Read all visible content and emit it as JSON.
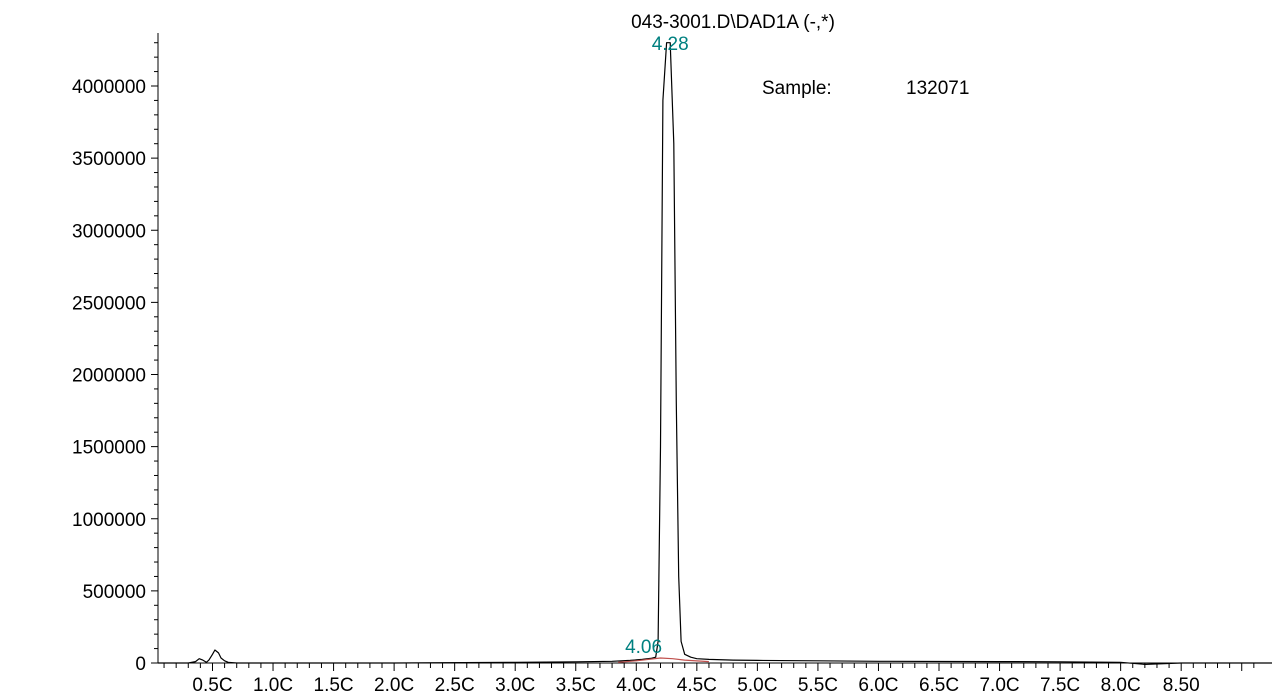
{
  "chart_data": {
    "type": "line",
    "title": "043-3001.D\\DAD1A (-,*)",
    "annotation": {
      "label": "Sample:",
      "value": "132071"
    },
    "xlabel": "",
    "ylabel": "",
    "xlim": [
      0.05,
      9.25
    ],
    "ylim": [
      0,
      4400000
    ],
    "grid": false,
    "x_tick_values": [
      0.5,
      1.0,
      1.5,
      2.0,
      2.5,
      3.0,
      3.5,
      4.0,
      4.5,
      5.0,
      5.5,
      6.0,
      6.5,
      7.0,
      7.5,
      8.0,
      8.5
    ],
    "x_tick_labels": [
      "0.5C",
      "1.0C",
      "1.5C",
      "2.0C",
      "2.5C",
      "3.0C",
      "3.5C",
      "4.0C",
      "4.5C",
      "5.0C",
      "5.5C",
      "6.0C",
      "6.5C",
      "7.0C",
      "7.5C",
      "8.0C",
      "8.50"
    ],
    "y_ticks": [
      {
        "value": 0,
        "label": "0"
      },
      {
        "value": 500000,
        "label": "500000"
      },
      {
        "value": 1000000,
        "label": "1000000"
      },
      {
        "value": 1500000,
        "label": "1500000"
      },
      {
        "value": 2000000,
        "label": "2000000"
      },
      {
        "value": 2500000,
        "label": "2500000"
      },
      {
        "value": 3000000,
        "label": "3000000"
      },
      {
        "value": 3500000,
        "label": "3500000"
      },
      {
        "value": 4000000,
        "label": "4000000"
      }
    ],
    "peaks": [
      {
        "label": "4.28",
        "x": 4.28,
        "y": 4400000,
        "color": "#008080"
      },
      {
        "label": "4.06",
        "x": 4.06,
        "y": 40000,
        "color": "#008080"
      }
    ],
    "series": [
      {
        "color": "#000000",
        "x": [
          0.05,
          0.3,
          0.36,
          0.39,
          0.42,
          0.45,
          0.47,
          0.5,
          0.52,
          0.55,
          0.57,
          0.6,
          0.63,
          0.7,
          1.0,
          2.0,
          3.0,
          3.5,
          3.8,
          3.95,
          4.05,
          4.12,
          4.16,
          4.18,
          4.2,
          4.22,
          4.25,
          4.28,
          4.31,
          4.33,
          4.35,
          4.37,
          4.4,
          4.45,
          4.5,
          4.6,
          4.8,
          5.0,
          5.5,
          6.0,
          7.0,
          7.5,
          8.0,
          8.2,
          8.5,
          9.0,
          9.25
        ],
        "y": [
          0,
          0,
          10000,
          30000,
          20000,
          5000,
          20000,
          60000,
          90000,
          70000,
          35000,
          15000,
          5000,
          0,
          0,
          0,
          5000,
          8000,
          12000,
          18000,
          25000,
          32000,
          40000,
          150000,
          1500000,
          3900000,
          4300000,
          4300000,
          3600000,
          1800000,
          600000,
          150000,
          60000,
          40000,
          30000,
          25000,
          20000,
          18000,
          15000,
          12000,
          10000,
          8000,
          5000,
          -10000,
          0,
          0,
          0
        ]
      },
      {
        "color": "#c0504d",
        "x": [
          3.85,
          4.0,
          4.1,
          4.2,
          4.3,
          4.4,
          4.6
        ],
        "y": [
          5000,
          15000,
          25000,
          35000,
          30000,
          20000,
          10000
        ]
      }
    ]
  }
}
